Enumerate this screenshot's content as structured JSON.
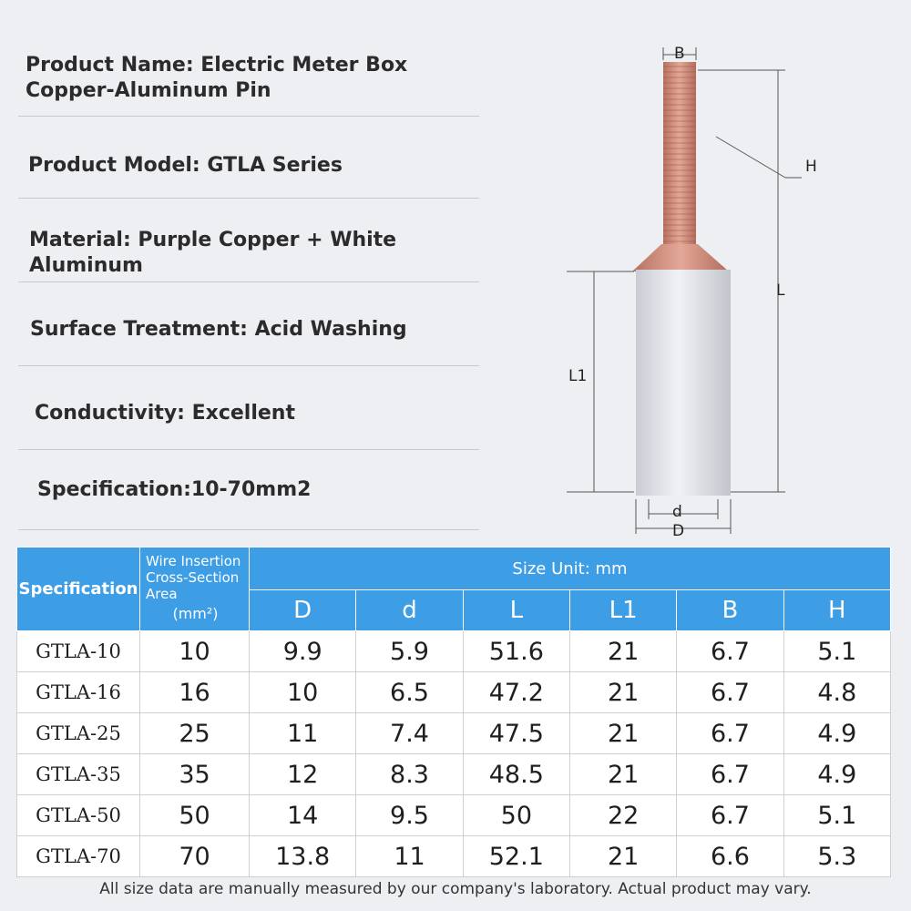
{
  "info": {
    "product_name_line1": "Product Name: Electric Meter Box",
    "product_name_line2": "Copper-Aluminum Pin",
    "product_model": "Product Model: GTLA Series",
    "material": "Material: Purple Copper + White Aluminum",
    "surface_treatment": "Surface Treatment: Acid Washing",
    "conductivity": "Conductivity: Excellent",
    "specification": "Specification:10-70mm2"
  },
  "diagram": {
    "label_B": "B",
    "label_H": "H",
    "label_L": "L",
    "label_L1": "L1",
    "label_d": "d",
    "label_D": "D",
    "copper_color": "#c98a78",
    "aluminum_color": "#e2e4ea"
  },
  "table": {
    "header_spec": "Specification",
    "header_wire_l1": "Wire Insertion",
    "header_wire_l2": "Cross-Section",
    "header_wire_l3": "Area",
    "header_wire_unit": "(mm²)",
    "header_size_unit": "Size Unit: mm",
    "columns": [
      "D",
      "d",
      "L",
      "L1",
      "B",
      "H"
    ],
    "rows": [
      [
        "GTLA-10",
        "10",
        "9.9",
        "5.9",
        "51.6",
        "21",
        "6.7",
        "5.1"
      ],
      [
        "GTLA-16",
        "16",
        "10",
        "6.5",
        "47.2",
        "21",
        "6.7",
        "4.8"
      ],
      [
        "GTLA-25",
        "25",
        "11",
        "7.4",
        "47.5",
        "21",
        "6.7",
        "4.9"
      ],
      [
        "GTLA-35",
        "35",
        "12",
        "8.3",
        "48.5",
        "21",
        "6.7",
        "4.9"
      ],
      [
        "GTLA-50",
        "50",
        "14",
        "9.5",
        "50",
        "22",
        "6.7",
        "5.1"
      ],
      [
        "GTLA-70",
        "70",
        "13.8",
        "11",
        "52.1",
        "21",
        "6.6",
        "5.3"
      ]
    ],
    "header_color": "#3d9ee6"
  },
  "footnote": "All size data are manually measured by our company's laboratory. Actual product may vary."
}
